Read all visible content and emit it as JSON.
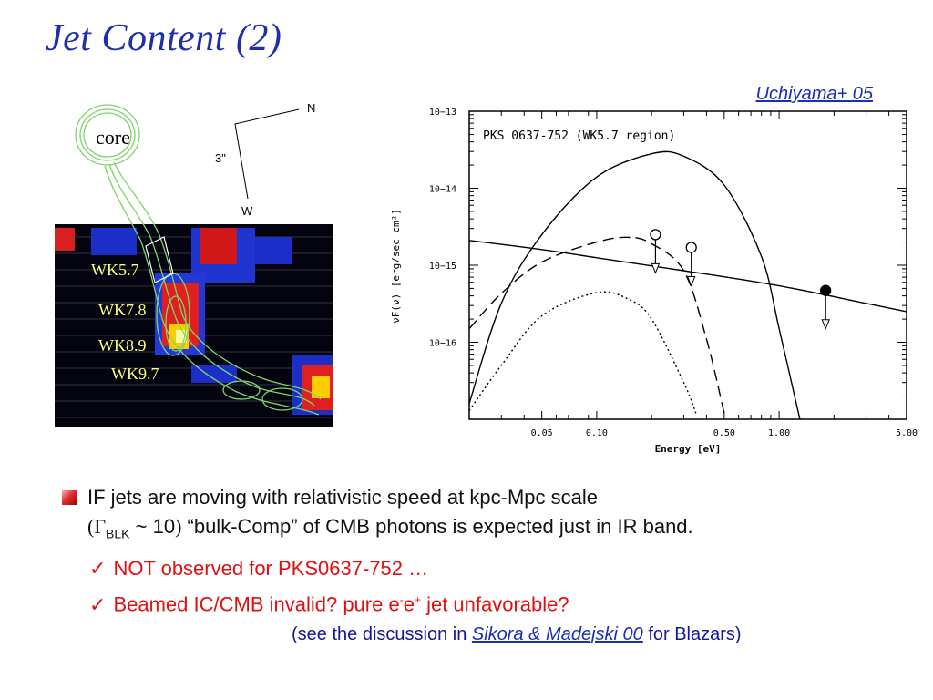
{
  "slide": {
    "title": "Jet Content (2)",
    "citation": "Uchiyama+ 05"
  },
  "image_panel": {
    "core_label": "core",
    "north_label": "N",
    "west_label": "W",
    "scale_label": "3\"",
    "knots": [
      "WK5.7",
      "WK7.8",
      "WK8.9",
      "WK9.7"
    ]
  },
  "chart_data": {
    "type": "line",
    "title": "PKS 0637-752 (WK5.7 region)",
    "xlabel": "Energy [eV]",
    "ylabel": "νF(ν) [erg/sec cm²]",
    "x_scale": "log",
    "y_scale": "log",
    "xlim": [
      0.02,
      5.0
    ],
    "ylim": [
      1e-17,
      1e-13
    ],
    "x_ticks": [
      "0.05",
      "0.10",
      "0.50",
      "1.00",
      "5.00"
    ],
    "y_ticks": [
      "10−13",
      "10−14",
      "10−15",
      "10−16"
    ],
    "series": [
      {
        "style": "solid-peak",
        "x": [
          0.02,
          0.03,
          0.05,
          0.1,
          0.2,
          0.3,
          0.5,
          0.8,
          1.0,
          1.3
        ],
        "y": [
          1.6e-17,
          3.2e-16,
          2.5e-15,
          1.4e-14,
          2.8e-14,
          2.6e-14,
          1.1e-14,
          1.3e-15,
          1.5e-16,
          1e-17
        ]
      },
      {
        "style": "solid-powerlaw",
        "x": [
          0.02,
          0.05,
          0.1,
          0.3,
          1.0,
          3.0,
          5.0
        ],
        "y": [
          2.1e-15,
          1.6e-15,
          1.25e-15,
          8.5e-16,
          5.4e-16,
          3.2e-16,
          2.5e-16
        ]
      },
      {
        "style": "dashed",
        "x": [
          0.02,
          0.03,
          0.05,
          0.1,
          0.15,
          0.2,
          0.3,
          0.4,
          0.5
        ],
        "y": [
          1.5e-16,
          4.3e-16,
          1.1e-15,
          2e-15,
          2.3e-15,
          1.9e-15,
          8.5e-16,
          1.1e-16,
          1.2e-17
        ]
      },
      {
        "style": "dotted",
        "x": [
          0.02,
          0.03,
          0.05,
          0.1,
          0.15,
          0.2,
          0.3,
          0.35
        ],
        "y": [
          1.3e-17,
          5e-17,
          2.2e-16,
          4.4e-16,
          3.6e-16,
          2e-16,
          3e-17,
          1.2e-17
        ]
      }
    ],
    "upper_limits": [
      {
        "x": 0.21,
        "y": 2.5e-15,
        "marker": "open"
      },
      {
        "x": 0.33,
        "y": 1.7e-15,
        "marker": "open"
      },
      {
        "x": 1.8,
        "y": 4.7e-16,
        "marker": "filled"
      }
    ]
  },
  "bullets": {
    "main_line1": "IF jets are moving with relativistic speed at kpc-Mpc scale",
    "open_paren": "(",
    "gamma": "Γ",
    "gamma_sub": "BLK",
    "approx": " ~ 10",
    "close_paren": ")",
    "main_line2_rest": " “bulk-Comp” of CMB photons is expected just in IR band.",
    "check": "✓",
    "sub1": "NOT observed for PKS0637-752 …",
    "sub2_a": "Beamed IC/CMB invalid?  pure e",
    "sub2_sup1": "-",
    "sub2_b": "e",
    "sub2_sup2": "+",
    "sub2_c": " jet unfavorable?",
    "ref_a": "(see the discussion in ",
    "ref_paper": "Sikora & Madejski 00",
    "ref_b": " for Blazars)"
  }
}
